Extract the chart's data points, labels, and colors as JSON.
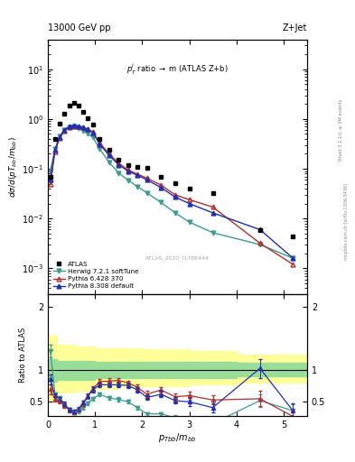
{
  "title_left": "13000 GeV pp",
  "title_right": "Z+Jet",
  "main_label": "$p_T^j$ ratio $\\rightarrow$ m (ATLAS Z+b)",
  "watermark": "ATLAS_2020_I1788444",
  "right_label_top": "Rivet 3.1.10, ≥ 3M events",
  "right_label_bottom": "mcplots.cern.ch [arXiv:1306.3436]",
  "ylabel_main": "dσ/d(pT$_{bb}$/m$_{bb}$)",
  "ylabel_ratio": "Ratio to ATLAS",
  "xlabel": "$p_{Tbb}/m_{bb}$",
  "ylim_main_lo": 0.0003,
  "ylim_main_hi": 40,
  "ylim_ratio_lo": 0.28,
  "ylim_ratio_hi": 2.2,
  "xmin": 0.0,
  "xmax": 5.5,
  "atlas_x": [
    0.05,
    0.15,
    0.25,
    0.35,
    0.45,
    0.55,
    0.65,
    0.75,
    0.85,
    0.95,
    1.1,
    1.3,
    1.5,
    1.7,
    1.9,
    2.1,
    2.4,
    2.7,
    3.0,
    3.5,
    4.5,
    5.2
  ],
  "atlas_y": [
    0.07,
    0.4,
    0.8,
    1.3,
    1.85,
    2.1,
    1.85,
    1.4,
    1.05,
    0.78,
    0.4,
    0.24,
    0.155,
    0.118,
    0.107,
    0.105,
    0.068,
    0.052,
    0.04,
    0.032,
    0.0058,
    0.0044
  ],
  "herwig_x": [
    0.05,
    0.15,
    0.25,
    0.35,
    0.45,
    0.55,
    0.65,
    0.75,
    0.85,
    0.95,
    1.1,
    1.3,
    1.5,
    1.7,
    1.9,
    2.1,
    2.4,
    2.7,
    3.0,
    3.5,
    4.5,
    5.2
  ],
  "herwig_y": [
    0.09,
    0.25,
    0.45,
    0.6,
    0.68,
    0.7,
    0.65,
    0.58,
    0.5,
    0.43,
    0.25,
    0.135,
    0.083,
    0.059,
    0.044,
    0.033,
    0.021,
    0.013,
    0.0085,
    0.0052,
    0.003,
    0.0016
  ],
  "pythia6_x": [
    0.05,
    0.15,
    0.25,
    0.35,
    0.45,
    0.55,
    0.65,
    0.75,
    0.85,
    0.95,
    1.1,
    1.3,
    1.5,
    1.7,
    1.9,
    2.1,
    2.4,
    2.7,
    3.0,
    3.5,
    4.5,
    5.2
  ],
  "pythia6_y": [
    0.05,
    0.22,
    0.42,
    0.58,
    0.68,
    0.72,
    0.7,
    0.67,
    0.62,
    0.55,
    0.33,
    0.2,
    0.13,
    0.095,
    0.078,
    0.065,
    0.047,
    0.03,
    0.024,
    0.017,
    0.0032,
    0.0012
  ],
  "pythia8_x": [
    0.05,
    0.15,
    0.25,
    0.35,
    0.45,
    0.55,
    0.65,
    0.75,
    0.85,
    0.95,
    1.1,
    1.3,
    1.5,
    1.7,
    1.9,
    2.1,
    2.4,
    2.7,
    3.0,
    3.5,
    4.5,
    5.2
  ],
  "pythia8_y": [
    0.06,
    0.24,
    0.44,
    0.61,
    0.7,
    0.74,
    0.72,
    0.68,
    0.62,
    0.54,
    0.31,
    0.185,
    0.12,
    0.09,
    0.074,
    0.06,
    0.042,
    0.027,
    0.02,
    0.013,
    0.006,
    0.0016
  ],
  "herwig_color": "#3d9b8f",
  "pythia6_color": "#b03030",
  "pythia8_color": "#2030b0",
  "atlas_color": "black",
  "ratio_herwig_x": [
    0.05,
    0.15,
    0.25,
    0.35,
    0.45,
    0.55,
    0.65,
    0.75,
    0.85,
    0.95,
    1.1,
    1.3,
    1.5,
    1.7,
    1.9,
    2.1,
    2.4,
    2.7,
    3.0,
    3.5,
    4.5,
    5.2
  ],
  "ratio_herwig_y": [
    1.3,
    0.62,
    0.56,
    0.46,
    0.37,
    0.33,
    0.35,
    0.41,
    0.48,
    0.55,
    0.62,
    0.56,
    0.54,
    0.5,
    0.41,
    0.31,
    0.31,
    0.25,
    0.21,
    0.16,
    0.52,
    0.36
  ],
  "ratio_herwig_yerr": [
    0.1,
    0.03,
    0.03,
    0.03,
    0.03,
    0.03,
    0.03,
    0.03,
    0.03,
    0.03,
    0.03,
    0.03,
    0.03,
    0.03,
    0.03,
    0.03,
    0.03,
    0.04,
    0.04,
    0.05,
    0.1,
    0.1
  ],
  "ratio_pythia6_x": [
    0.05,
    0.15,
    0.25,
    0.35,
    0.45,
    0.55,
    0.65,
    0.75,
    0.85,
    0.95,
    1.1,
    1.3,
    1.5,
    1.7,
    1.9,
    2.1,
    2.4,
    2.7,
    3.0,
    3.5,
    4.5,
    5.2
  ],
  "ratio_pythia6_y": [
    0.7,
    0.55,
    0.52,
    0.45,
    0.37,
    0.34,
    0.38,
    0.48,
    0.59,
    0.71,
    0.82,
    0.83,
    0.84,
    0.8,
    0.73,
    0.62,
    0.69,
    0.58,
    0.6,
    0.53,
    0.55,
    0.27
  ],
  "ratio_pythia6_yerr": [
    0.08,
    0.04,
    0.04,
    0.04,
    0.03,
    0.03,
    0.03,
    0.04,
    0.04,
    0.04,
    0.04,
    0.04,
    0.04,
    0.04,
    0.04,
    0.05,
    0.05,
    0.06,
    0.06,
    0.07,
    0.12,
    0.1
  ],
  "ratio_pythia8_x": [
    0.05,
    0.15,
    0.25,
    0.35,
    0.45,
    0.55,
    0.65,
    0.75,
    0.85,
    0.95,
    1.1,
    1.3,
    1.5,
    1.7,
    1.9,
    2.1,
    2.4,
    2.7,
    3.0,
    3.5,
    4.5,
    5.2
  ],
  "ratio_pythia8_y": [
    0.86,
    0.6,
    0.55,
    0.47,
    0.38,
    0.35,
    0.39,
    0.49,
    0.59,
    0.69,
    0.77,
    0.77,
    0.77,
    0.76,
    0.69,
    0.57,
    0.62,
    0.52,
    0.5,
    0.41,
    1.03,
    0.36
  ],
  "ratio_pythia8_yerr": [
    0.08,
    0.03,
    0.03,
    0.03,
    0.03,
    0.03,
    0.03,
    0.03,
    0.03,
    0.04,
    0.04,
    0.04,
    0.04,
    0.04,
    0.04,
    0.04,
    0.05,
    0.05,
    0.06,
    0.07,
    0.15,
    0.12
  ],
  "band_edges": [
    0.0,
    0.2,
    0.6,
    1.0,
    1.5,
    2.0,
    3.0,
    4.0,
    5.5
  ],
  "band_green_lo": [
    0.82,
    0.85,
    0.85,
    0.87,
    0.88,
    0.88,
    0.88,
    0.9,
    0.9
  ],
  "band_green_hi": [
    1.18,
    1.15,
    1.15,
    1.13,
    1.13,
    1.13,
    1.13,
    1.12,
    1.12
  ],
  "band_yellow_lo": [
    0.5,
    0.65,
    0.68,
    0.7,
    0.73,
    0.75,
    0.78,
    0.8,
    0.8
  ],
  "band_yellow_hi": [
    1.55,
    1.4,
    1.38,
    1.35,
    1.35,
    1.33,
    1.3,
    1.25,
    1.25
  ]
}
